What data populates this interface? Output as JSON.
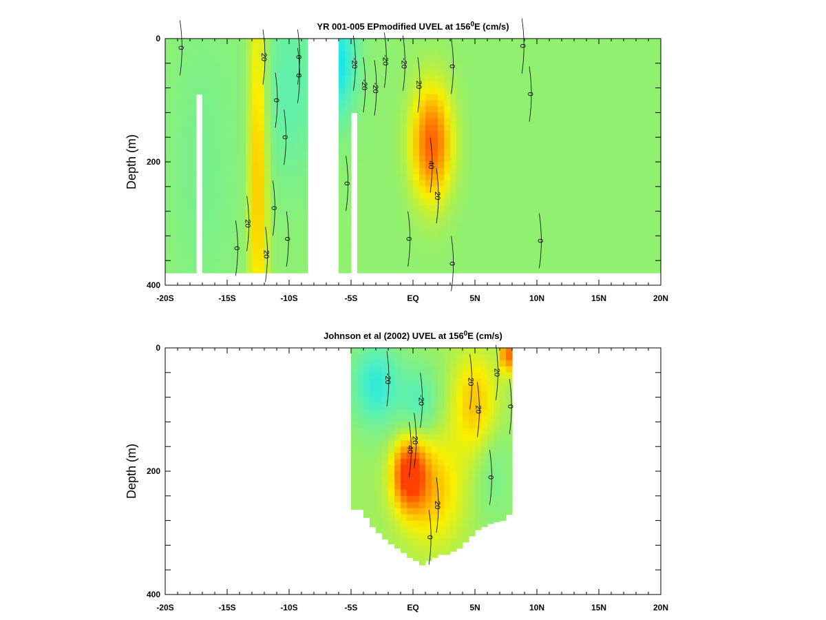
{
  "chart_data": [
    {
      "type": "heatmap",
      "title": {
        "pre": "YR 001-005 EPmodified UVEL at 156",
        "sup": "0",
        "post": "E (cm/s)"
      },
      "ylabel": "Depth (m)",
      "xlim": [
        -20,
        20
      ],
      "ylim": [
        0,
        400
      ],
      "y_inverted": true,
      "x_ticks": [
        -20,
        -15,
        -10,
        -5,
        0,
        5,
        10,
        15,
        20
      ],
      "x_tick_labels": [
        "-20S",
        "-15S",
        "-10S",
        "-5S",
        "EQ",
        "5N",
        "10N",
        "15N",
        "20N"
      ],
      "y_ticks": [
        0,
        200,
        400
      ],
      "y_tick_labels": [
        "0",
        "200",
        "400"
      ],
      "colormap": [
        "#00e0ff",
        "#4ff0c0",
        "#90f070",
        "#f8f000",
        "#ff9400",
        "#ff4000"
      ],
      "color_range": [
        -30,
        50
      ],
      "data_depth_max": 380,
      "data_gaps": [
        {
          "x": [
            -17.7,
            -16.9
          ],
          "depth": [
            90,
            400
          ]
        },
        {
          "x": [
            -8.4,
            -6.2
          ],
          "depth": [
            0,
            400
          ]
        },
        {
          "x": [
            -5.1,
            -4.4
          ],
          "depth": [
            120,
            400
          ]
        }
      ],
      "features": [
        {
          "lat": -12.5,
          "depth": 200,
          "value": 26,
          "lat_width": 0.8,
          "depth_width": 320
        },
        {
          "lat": 1.5,
          "depth": 170,
          "value": 42,
          "lat_width": 1.6,
          "depth_width": 90
        },
        {
          "lat": -6.0,
          "depth": 40,
          "value": -26,
          "lat_width": 1.5,
          "depth_width": 90
        },
        {
          "lat": -10.0,
          "depth": 80,
          "value": -12,
          "lat_width": 2.5,
          "depth_width": 160
        },
        {
          "lat": -17.0,
          "depth": 200,
          "value": -6,
          "lat_width": 3.0,
          "depth_width": 250
        }
      ],
      "background_value": 2,
      "contour_labels": [
        {
          "text": "20",
          "lat": -12.0,
          "depth": 30
        },
        {
          "text": "20",
          "lat": -13.3,
          "depth": 300
        },
        {
          "text": "20",
          "lat": -11.8,
          "depth": 350
        },
        {
          "text": "0",
          "lat": -11.0,
          "depth": 100
        },
        {
          "text": "0",
          "lat": -10.3,
          "depth": 160
        },
        {
          "text": "0",
          "lat": -11.2,
          "depth": 275
        },
        {
          "text": "0",
          "lat": -10.1,
          "depth": 325
        },
        {
          "text": "0",
          "lat": -14.2,
          "depth": 340
        },
        {
          "text": "0",
          "lat": -18.7,
          "depth": 15
        },
        {
          "text": "0",
          "lat": -9.2,
          "depth": 30
        },
        {
          "text": "0",
          "lat": -9.2,
          "depth": 60
        },
        {
          "text": "-20",
          "lat": -4.7,
          "depth": 40
        },
        {
          "text": "-20",
          "lat": -2.2,
          "depth": 35
        },
        {
          "text": "-20",
          "lat": -0.7,
          "depth": 40
        },
        {
          "text": "-20",
          "lat": -3.9,
          "depth": 75
        },
        {
          "text": "-20",
          "lat": -3.0,
          "depth": 80
        },
        {
          "text": "20",
          "lat": 0.5,
          "depth": 75
        },
        {
          "text": "40",
          "lat": 1.5,
          "depth": 205
        },
        {
          "text": "20",
          "lat": 2.0,
          "depth": 255
        },
        {
          "text": "0",
          "lat": 3.2,
          "depth": 45
        },
        {
          "text": "0",
          "lat": -0.3,
          "depth": 325
        },
        {
          "text": "0",
          "lat": 3.2,
          "depth": 365
        },
        {
          "text": "0",
          "lat": -5.3,
          "depth": 235
        },
        {
          "text": "0",
          "lat": 8.9,
          "depth": 12
        },
        {
          "text": "0",
          "lat": 9.5,
          "depth": 90
        },
        {
          "text": "0",
          "lat": 10.3,
          "depth": 328
        }
      ]
    },
    {
      "type": "heatmap",
      "title": {
        "pre": "Johnson et al (2002) UVEL at 156",
        "sup": "0",
        "post": "E (cm/s)"
      },
      "ylabel": "Depth (m)",
      "xlim": [
        -20,
        20
      ],
      "ylim": [
        0,
        400
      ],
      "y_inverted": true,
      "x_ticks": [
        -20,
        -15,
        -10,
        -5,
        0,
        5,
        10,
        15,
        20
      ],
      "x_tick_labels": [
        "-20S",
        "-15S",
        "-10S",
        "-5S",
        "EQ",
        "5N",
        "10N",
        "15N",
        "20N"
      ],
      "y_ticks": [
        0,
        200,
        400
      ],
      "y_tick_labels": [
        "0",
        "200",
        "400"
      ],
      "colormap": [
        "#00e0ff",
        "#4ff0c0",
        "#90f070",
        "#f8f000",
        "#ff9400",
        "#ff4000"
      ],
      "color_range": [
        -30,
        50
      ],
      "data_lat_range": [
        -5,
        8
      ],
      "bottom_profile": [
        [
          -5,
          262
        ],
        [
          -4.5,
          262
        ],
        [
          -4,
          275
        ],
        [
          -3.5,
          290
        ],
        [
          -3,
          300
        ],
        [
          -2.5,
          310
        ],
        [
          -2,
          318
        ],
        [
          -1.5,
          325
        ],
        [
          -1,
          332
        ],
        [
          -0.5,
          340
        ],
        [
          0,
          345
        ],
        [
          0.5,
          352
        ],
        [
          1,
          345
        ],
        [
          1.5,
          340
        ],
        [
          2,
          335
        ],
        [
          2.5,
          335
        ],
        [
          3,
          330
        ],
        [
          3.5,
          325
        ],
        [
          4,
          315
        ],
        [
          4.5,
          305
        ],
        [
          5,
          295
        ],
        [
          5.5,
          290
        ],
        [
          6,
          285
        ],
        [
          6.5,
          282
        ],
        [
          7,
          280
        ],
        [
          7.5,
          270
        ],
        [
          8,
          280
        ]
      ],
      "features": [
        {
          "lat": -0.3,
          "depth": 205,
          "value": 46,
          "lat_width": 1.3,
          "depth_width": 55
        },
        {
          "lat": 1.5,
          "depth": 230,
          "value": 22,
          "lat_width": 2.5,
          "depth_width": 90
        },
        {
          "lat": -3.0,
          "depth": 60,
          "value": -24,
          "lat_width": 2.0,
          "depth_width": 70
        },
        {
          "lat": 0.5,
          "depth": 90,
          "value": -16,
          "lat_width": 1.6,
          "depth_width": 60
        },
        {
          "lat": 5.0,
          "depth": 90,
          "value": 22,
          "lat_width": 1.8,
          "depth_width": 80
        },
        {
          "lat": 7.6,
          "depth": 10,
          "value": 40,
          "lat_width": 0.5,
          "depth_width": 30
        },
        {
          "lat": 6.5,
          "depth": 200,
          "value": -8,
          "lat_width": 1.5,
          "depth_width": 80
        }
      ],
      "background_value": 4,
      "contour_labels": [
        {
          "text": "-20",
          "lat": -2.0,
          "depth": 50
        },
        {
          "text": "-20",
          "lat": 0.7,
          "depth": 85
        },
        {
          "text": "20",
          "lat": 0.2,
          "depth": 150
        },
        {
          "text": "40",
          "lat": -0.2,
          "depth": 165
        },
        {
          "text": "20",
          "lat": 2.0,
          "depth": 255
        },
        {
          "text": "20",
          "lat": 4.7,
          "depth": 55
        },
        {
          "text": "20",
          "lat": 6.8,
          "depth": 40
        },
        {
          "text": "20",
          "lat": 5.3,
          "depth": 100
        },
        {
          "text": "0",
          "lat": 7.9,
          "depth": 95
        },
        {
          "text": "0",
          "lat": 6.3,
          "depth": 210
        },
        {
          "text": "0",
          "lat": 1.4,
          "depth": 307
        }
      ]
    }
  ]
}
